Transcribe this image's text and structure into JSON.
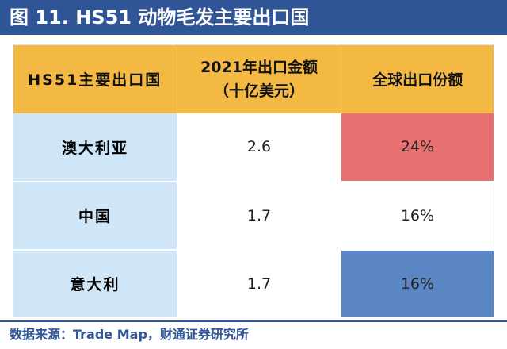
{
  "title": "图 11. HS51 动物毛发主要出口国",
  "table": {
    "headers": {
      "country": "HS51主要出口国",
      "value_line1": "2021年出口金额",
      "value_line2": "（十亿美元）",
      "share": "全球出口份额"
    },
    "rows": [
      {
        "country": "澳大利亚",
        "value": "2.6",
        "share": "24%",
        "share_color": "#e87070"
      },
      {
        "country": "中国",
        "value": "1.7",
        "share": "16%",
        "share_color": "#ffffff"
      },
      {
        "country": "意大利",
        "value": "1.7",
        "share": "16%",
        "share_color": "#5b87c5"
      }
    ]
  },
  "source": "数据来源：Trade Map，财通证券研究所"
}
